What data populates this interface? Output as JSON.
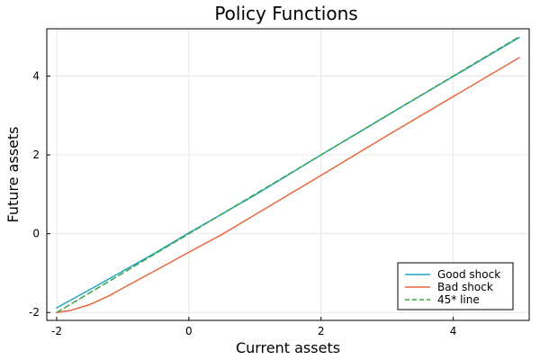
{
  "chart_data": {
    "type": "line",
    "title": "Policy Functions",
    "xlabel": "Current assets",
    "ylabel": "Future assets",
    "xlim": [
      -2.15,
      5.15
    ],
    "ylim": [
      -2.2,
      5.2
    ],
    "x_ticks": [
      -2,
      0,
      2,
      4
    ],
    "y_ticks": [
      -2,
      0,
      2,
      4
    ],
    "x_tick_labels": [
      "-2",
      "0",
      "2",
      "4"
    ],
    "y_tick_labels": [
      "-2",
      "0",
      "2",
      "4"
    ],
    "grid": true,
    "legend_position": "bottom-right",
    "series": [
      {
        "name": "Good shock",
        "color": "#1ea7c7",
        "dash": "solid",
        "x": [
          -2.0,
          -1.5,
          -1.0,
          -0.5,
          0.0,
          1.0,
          2.0,
          3.0,
          4.0,
          5.0
        ],
        "y": [
          -1.88,
          -1.42,
          -0.95,
          -0.48,
          0.02,
          0.98,
          2.0,
          3.0,
          3.99,
          4.98
        ]
      },
      {
        "name": "Bad shock",
        "color": "#e8663c",
        "dash": "solid",
        "x": [
          -2.0,
          -1.8,
          -1.5,
          -1.2,
          -1.0,
          -0.5,
          0.0,
          0.5,
          1.0,
          2.0,
          3.0,
          4.0,
          5.0
        ],
        "y": [
          -2.0,
          -1.95,
          -1.8,
          -1.57,
          -1.38,
          -0.93,
          -0.47,
          -0.02,
          0.48,
          1.48,
          2.49,
          3.48,
          4.47
        ]
      },
      {
        "name": "45* line",
        "color": "#3fa34d",
        "dash": "dashed",
        "x": [
          -2.0,
          5.0
        ],
        "y": [
          -2.0,
          5.0
        ]
      }
    ]
  }
}
